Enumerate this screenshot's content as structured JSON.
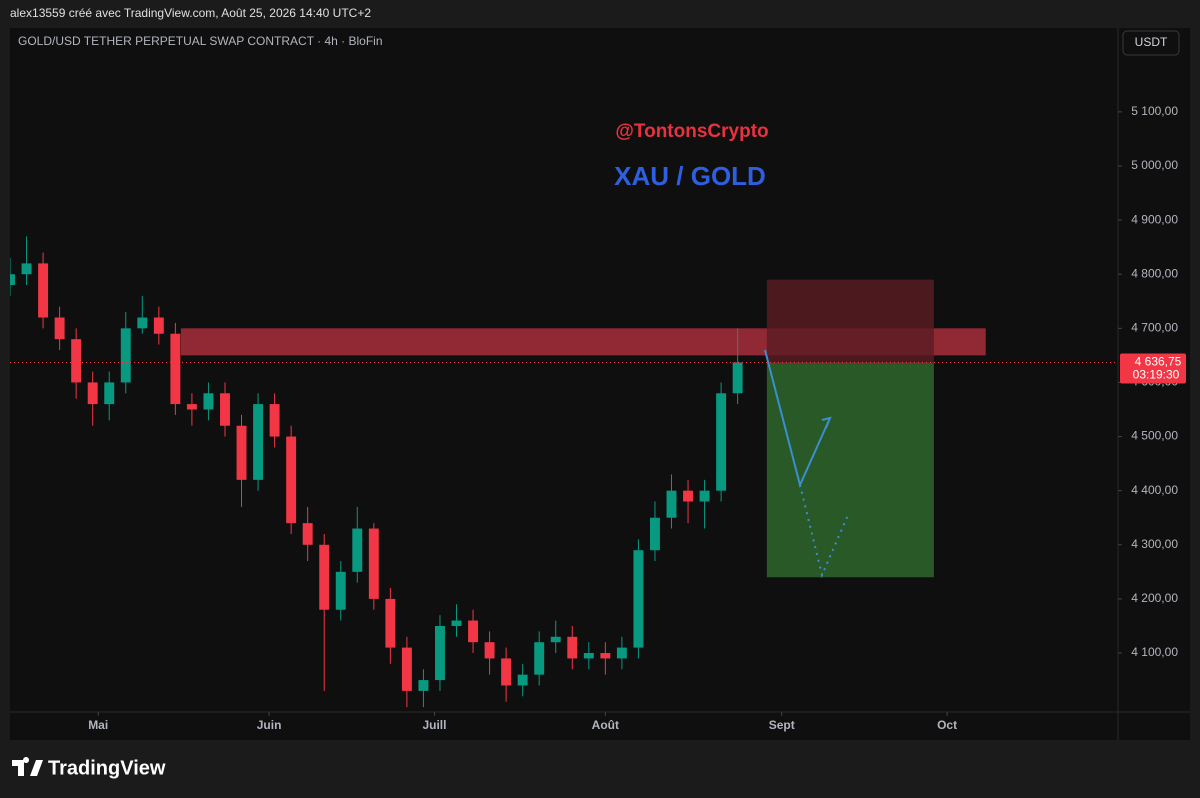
{
  "header": {
    "text": "alex13559 créé avec TradingView.com, Août 25, 2026 14:40 UTC+2"
  },
  "chart_data": {
    "type": "candlestick",
    "title": "GOLD/USD TETHER PERPETUAL SWAP CONTRACT · 4h · BloFin",
    "currency": "USDT",
    "annotations": [
      "@TontonsCrypto",
      "XAU / GOLD"
    ],
    "up_color": "#089981",
    "down_color": "#f23645",
    "x": [
      0,
      3,
      6,
      9,
      12,
      15,
      18,
      21,
      24,
      27,
      30,
      33,
      36,
      39,
      42,
      45,
      48,
      51,
      54,
      57,
      60,
      63,
      66,
      69,
      72,
      75,
      78,
      81,
      84,
      87,
      90,
      93,
      96,
      99,
      102,
      105,
      108,
      111,
      114,
      117,
      120,
      123,
      126,
      129,
      132
    ],
    "open": [
      4780,
      4800,
      4820,
      4720,
      4680,
      4600,
      4560,
      4600,
      4700,
      4720,
      4690,
      4560,
      4550,
      4580,
      4520,
      4420,
      4560,
      4500,
      4340,
      4300,
      4180,
      4250,
      4330,
      4200,
      4110,
      4030,
      4050,
      4150,
      4160,
      4120,
      4090,
      4040,
      4060,
      4120,
      4130,
      4090,
      4100,
      4090,
      4110,
      4290,
      4350,
      4400,
      4380,
      4400,
      4580
    ],
    "high": [
      4830,
      4870,
      4840,
      4740,
      4700,
      4620,
      4620,
      4730,
      4760,
      4740,
      4710,
      4580,
      4600,
      4600,
      4540,
      4580,
      4580,
      4520,
      4370,
      4320,
      4270,
      4370,
      4340,
      4220,
      4130,
      4070,
      4170,
      4190,
      4180,
      4140,
      4110,
      4080,
      4140,
      4160,
      4150,
      4120,
      4120,
      4130,
      4310,
      4380,
      4430,
      4420,
      4420,
      4600,
      4700
    ],
    "low": [
      4760,
      4780,
      4700,
      4660,
      4570,
      4520,
      4530,
      4580,
      4690,
      4670,
      4540,
      4520,
      4530,
      4500,
      4370,
      4400,
      4480,
      4320,
      4270,
      4030,
      4160,
      4230,
      4180,
      4080,
      4000,
      4000,
      4030,
      4130,
      4100,
      4060,
      4010,
      4020,
      4040,
      4100,
      4070,
      4070,
      4060,
      4070,
      4090,
      4270,
      4330,
      4340,
      4330,
      4380,
      4560
    ],
    "close": [
      4800,
      4820,
      4720,
      4680,
      4600,
      4560,
      4600,
      4700,
      4720,
      4690,
      4560,
      4550,
      4580,
      4520,
      4420,
      4560,
      4500,
      4340,
      4300,
      4180,
      4250,
      4330,
      4200,
      4110,
      4030,
      4050,
      4150,
      4160,
      4120,
      4090,
      4040,
      4060,
      4120,
      4130,
      4090,
      4100,
      4090,
      4110,
      4290,
      4350,
      4400,
      4380,
      4400,
      4580,
      4637
    ],
    "xlim": [
      0,
      201
    ],
    "ylim": [
      3991,
      5255
    ],
    "xticks": [
      {
        "value": 16,
        "label": "Mai"
      },
      {
        "value": 47,
        "label": "Juin"
      },
      {
        "value": 77,
        "label": "Juill"
      },
      {
        "value": 108,
        "label": "Août"
      },
      {
        "value": 140,
        "label": "Sept"
      },
      {
        "value": 170,
        "label": "Oct"
      }
    ],
    "yticks": [
      {
        "value": 4100,
        "label": "4 100,00"
      },
      {
        "value": 4200,
        "label": "4 200,00"
      },
      {
        "value": 4300,
        "label": "4 300,00"
      },
      {
        "value": 4400,
        "label": "4 400,00"
      },
      {
        "value": 4500,
        "label": "4 500,00"
      },
      {
        "value": 4600,
        "label": "4 600,00"
      },
      {
        "value": 4700,
        "label": "4 700,00"
      },
      {
        "value": 4800,
        "label": "4 800,00"
      },
      {
        "value": 4900,
        "label": "4 900,00"
      },
      {
        "value": 5000,
        "label": "5 000,00"
      },
      {
        "value": 5100,
        "label": "5 100,00"
      }
    ],
    "last_price": {
      "value": 4636.75,
      "label": "4 636,75"
    },
    "countdown": "03:19:30",
    "zones": [
      {
        "x": [
          31,
          177
        ],
        "y": [
          4650,
          4700
        ],
        "color": "#b2303d"
      },
      {
        "x": [
          137.3,
          167.6
        ],
        "y": [
          4636.75,
          4790
        ],
        "color": "#5a1c22"
      },
      {
        "x": [
          137.3,
          167.6
        ],
        "y": [
          4240,
          4636.75
        ],
        "color": "#2f6b2c"
      }
    ]
  },
  "footer": {
    "logo": "TradingView"
  }
}
